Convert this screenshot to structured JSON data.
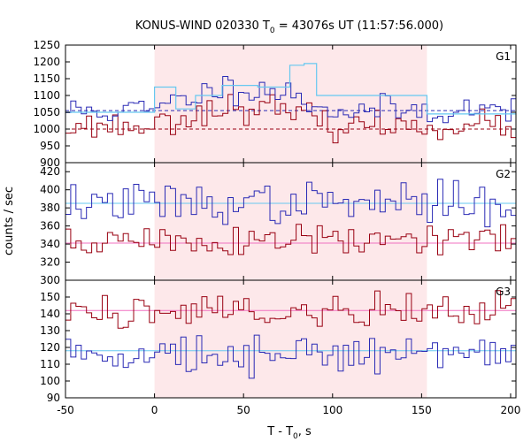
{
  "chart_data": {
    "type": "line",
    "title_prefix": "KONUS-WIND 020330 T",
    "title_subscript": "0",
    "title_suffix": " = 43076s UT (11:57:56.000)",
    "xlabel_prefix": "T - T",
    "xlabel_subscript": "0",
    "xlabel_suffix": ", s",
    "ylabel": "counts / sec",
    "xlim": [
      -50,
      203
    ],
    "x_ticks": [
      -50,
      0,
      50,
      100,
      150,
      200
    ],
    "highlight_range": [
      0,
      153
    ],
    "colors": {
      "highlight": "#fde8ea",
      "blue": "#2a2ab5",
      "red": "#990011",
      "light_blue": "#66c8f0",
      "pink": "#f070c0"
    },
    "panels": [
      {
        "label": "G1",
        "ylim": [
          900,
          1250
        ],
        "y_ticks": [
          900,
          950,
          1000,
          1050,
          1100,
          1150,
          1200,
          1250
        ],
        "blue_seed": 11,
        "blue_base": 1055,
        "blue_noise": 22,
        "red_seed": 23,
        "red_base": 1010,
        "red_noise": 20,
        "blue_pulse_amp": 70,
        "red_pulse_amp": 55,
        "blue_background": 1055,
        "red_background": 1000,
        "blue_fit_steps": [
          {
            "x0": -50,
            "x1": 0,
            "y": 1050
          },
          {
            "x0": 0,
            "x1": 12,
            "y": 1125
          },
          {
            "x0": 12,
            "x1": 23,
            "y": 1060
          },
          {
            "x0": 23,
            "x1": 38,
            "y": 1100
          },
          {
            "x0": 38,
            "x1": 58,
            "y": 1130
          },
          {
            "x0": 58,
            "x1": 76,
            "y": 1125
          },
          {
            "x0": 76,
            "x1": 84,
            "y": 1190
          },
          {
            "x0": 84,
            "x1": 91,
            "y": 1195
          },
          {
            "x0": 91,
            "x1": 153,
            "y": 1100
          },
          {
            "x0": 153,
            "x1": 203,
            "y": 1045
          }
        ]
      },
      {
        "label": "G2",
        "ylim": [
          300,
          430
        ],
        "y_ticks": [
          300,
          320,
          340,
          360,
          380,
          400,
          420
        ],
        "blue_seed": 37,
        "blue_base": 385,
        "blue_noise": 11,
        "red_seed": 51,
        "red_base": 343,
        "red_noise": 10,
        "blue_pulse_amp": 0,
        "red_pulse_amp": 0,
        "blue_background": 385,
        "red_background": 341,
        "blue_fit_steps": []
      },
      {
        "label": "G3",
        "ylim": [
          90,
          160
        ],
        "y_ticks": [
          90,
          100,
          110,
          120,
          130,
          140,
          150
        ],
        "blue_seed": 73,
        "blue_base": 117,
        "blue_noise": 6,
        "red_seed": 89,
        "red_base": 142,
        "red_noise": 6,
        "blue_pulse_amp": 0,
        "red_pulse_amp": 0,
        "blue_background": 118,
        "red_background": 142,
        "blue_fit_steps": []
      }
    ],
    "step_width": 2.944
  }
}
